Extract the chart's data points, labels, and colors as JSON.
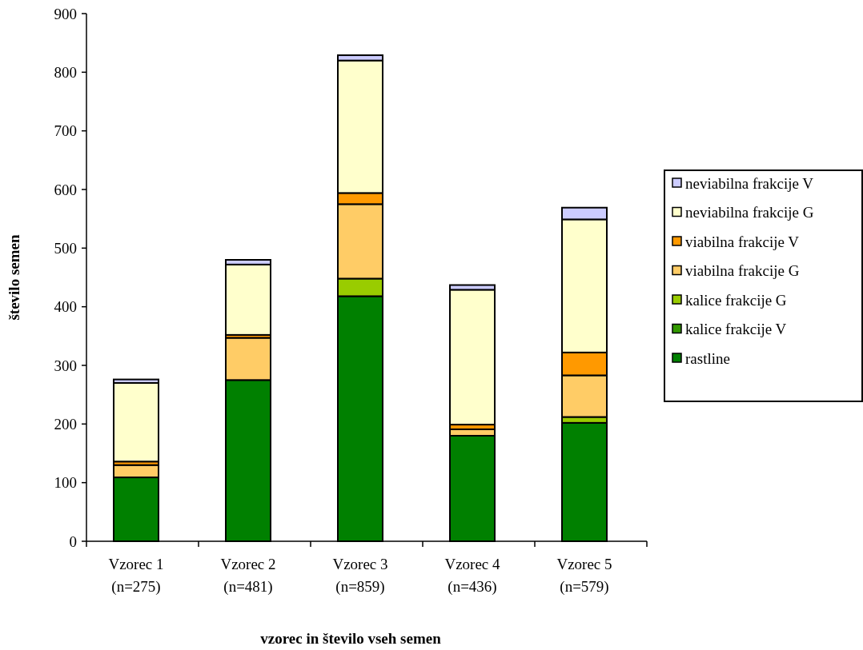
{
  "chart_data": {
    "type": "bar",
    "stacked": true,
    "xlabel": "vzorec in število vseh semen",
    "ylabel": "število semen",
    "categories": [
      "Vzorec 1\n(n=275)",
      "Vzorec 2\n(n=481)",
      "Vzorec 3\n(n=859)",
      "Vzorec 4\n(n=436)",
      "Vzorec 5\n(n=579)"
    ],
    "series": [
      {
        "name": "rastline",
        "color": "#008000",
        "values": [
          109,
          275,
          418,
          180,
          202
        ]
      },
      {
        "name": "kalice frakcije V",
        "color": "#339900",
        "values": [
          null,
          null,
          null,
          null,
          null
        ]
      },
      {
        "name": "kalice frakcije G",
        "color": "#99cc00",
        "values": [
          null,
          null,
          30,
          null,
          10
        ]
      },
      {
        "name": "viabilna frakcije G",
        "color": "#ffcc66",
        "values": [
          21,
          72,
          127,
          11,
          71
        ]
      },
      {
        "name": "viabilna frakcije V",
        "color": "#ff9900",
        "values": [
          6,
          5,
          19,
          8,
          39
        ]
      },
      {
        "name": "neviabilna frakcije G",
        "color": "#ffffcc",
        "values": [
          134,
          120,
          226,
          230,
          227
        ]
      },
      {
        "name": "neviabilna frakcije V",
        "color": "#ccccff",
        "values": [
          6,
          8,
          9,
          8,
          20
        ]
      }
    ],
    "ylim": [
      0,
      900
    ],
    "yticks": [
      0,
      100,
      200,
      300,
      400,
      500,
      600,
      700,
      800,
      900
    ],
    "grid": false,
    "legend": "right"
  }
}
